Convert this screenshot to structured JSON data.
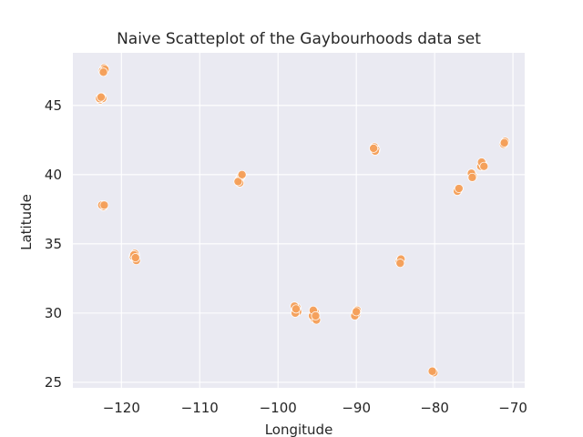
{
  "chart_data": {
    "type": "scatter",
    "title": "Naive Scatteplot of the Gaybourhoods data set",
    "xlabel": "Longitude",
    "ylabel": "Latitude",
    "xlim": [
      -126.2,
      -68.5
    ],
    "ylim": [
      24.6,
      48.8
    ],
    "xticks": [
      -120,
      -110,
      -100,
      -90,
      -80,
      -70
    ],
    "yticks": [
      25,
      30,
      35,
      40,
      45
    ],
    "grid": true,
    "point_color": "#f5a05a",
    "background_color": "#eaeaf2",
    "series": [
      {
        "points": [
          [
            -122.3,
            47.6
          ],
          [
            -122.2,
            47.7
          ],
          [
            -122.4,
            47.5
          ],
          [
            -122.1,
            47.6
          ],
          [
            -122.3,
            47.4
          ],
          [
            -122.6,
            45.5
          ],
          [
            -122.7,
            45.4
          ],
          [
            -122.5,
            45.6
          ],
          [
            -122.4,
            45.5
          ],
          [
            -122.8,
            45.5
          ],
          [
            -122.6,
            45.6
          ],
          [
            -122.4,
            37.8
          ],
          [
            -122.3,
            37.7
          ],
          [
            -122.5,
            37.8
          ],
          [
            -122.2,
            37.8
          ],
          [
            -118.3,
            34.1
          ],
          [
            -118.4,
            34.0
          ],
          [
            -118.2,
            34.2
          ],
          [
            -118.5,
            34.1
          ],
          [
            -118.3,
            34.3
          ],
          [
            -118.1,
            33.8
          ],
          [
            -118.4,
            34.2
          ],
          [
            -118.2,
            34.0
          ],
          [
            -104.9,
            39.7
          ],
          [
            -105.0,
            39.6
          ],
          [
            -104.8,
            39.8
          ],
          [
            -104.9,
            39.4
          ],
          [
            -104.7,
            39.9
          ],
          [
            -105.1,
            39.5
          ],
          [
            -104.6,
            40.0
          ],
          [
            -97.7,
            30.3
          ],
          [
            -97.8,
            30.2
          ],
          [
            -97.6,
            30.4
          ],
          [
            -97.9,
            30.5
          ],
          [
            -97.5,
            30.1
          ],
          [
            -97.8,
            30.0
          ],
          [
            -97.7,
            30.3
          ],
          [
            -95.4,
            29.8
          ],
          [
            -95.3,
            29.7
          ],
          [
            -95.5,
            29.9
          ],
          [
            -95.2,
            30.0
          ],
          [
            -95.4,
            29.6
          ],
          [
            -95.6,
            29.8
          ],
          [
            -95.3,
            30.1
          ],
          [
            -95.1,
            29.5
          ],
          [
            -95.5,
            30.2
          ],
          [
            -95.2,
            29.8
          ],
          [
            -90.1,
            30.0
          ],
          [
            -90.0,
            29.9
          ],
          [
            -89.9,
            30.2
          ],
          [
            -90.2,
            29.8
          ],
          [
            -90.0,
            30.1
          ],
          [
            -87.6,
            41.9
          ],
          [
            -87.7,
            42.0
          ],
          [
            -87.5,
            41.8
          ],
          [
            -87.6,
            41.7
          ],
          [
            -87.8,
            41.9
          ],
          [
            -84.4,
            33.8
          ],
          [
            -84.5,
            33.7
          ],
          [
            -84.3,
            33.9
          ],
          [
            -84.4,
            33.6
          ],
          [
            -80.2,
            25.8
          ],
          [
            -80.1,
            25.7
          ],
          [
            -80.3,
            25.8
          ],
          [
            -77.0,
            38.9
          ],
          [
            -77.1,
            38.8
          ],
          [
            -76.9,
            39.0
          ],
          [
            -75.2,
            40.0
          ],
          [
            -75.1,
            39.9
          ],
          [
            -75.3,
            40.1
          ],
          [
            -75.2,
            39.8
          ],
          [
            -74.0,
            40.7
          ],
          [
            -73.9,
            40.8
          ],
          [
            -74.1,
            40.6
          ],
          [
            -73.8,
            40.7
          ],
          [
            -74.0,
            40.9
          ],
          [
            -73.7,
            40.6
          ],
          [
            -71.1,
            42.3
          ],
          [
            -71.0,
            42.4
          ],
          [
            -71.2,
            42.2
          ],
          [
            -71.1,
            42.3
          ]
        ]
      }
    ]
  }
}
